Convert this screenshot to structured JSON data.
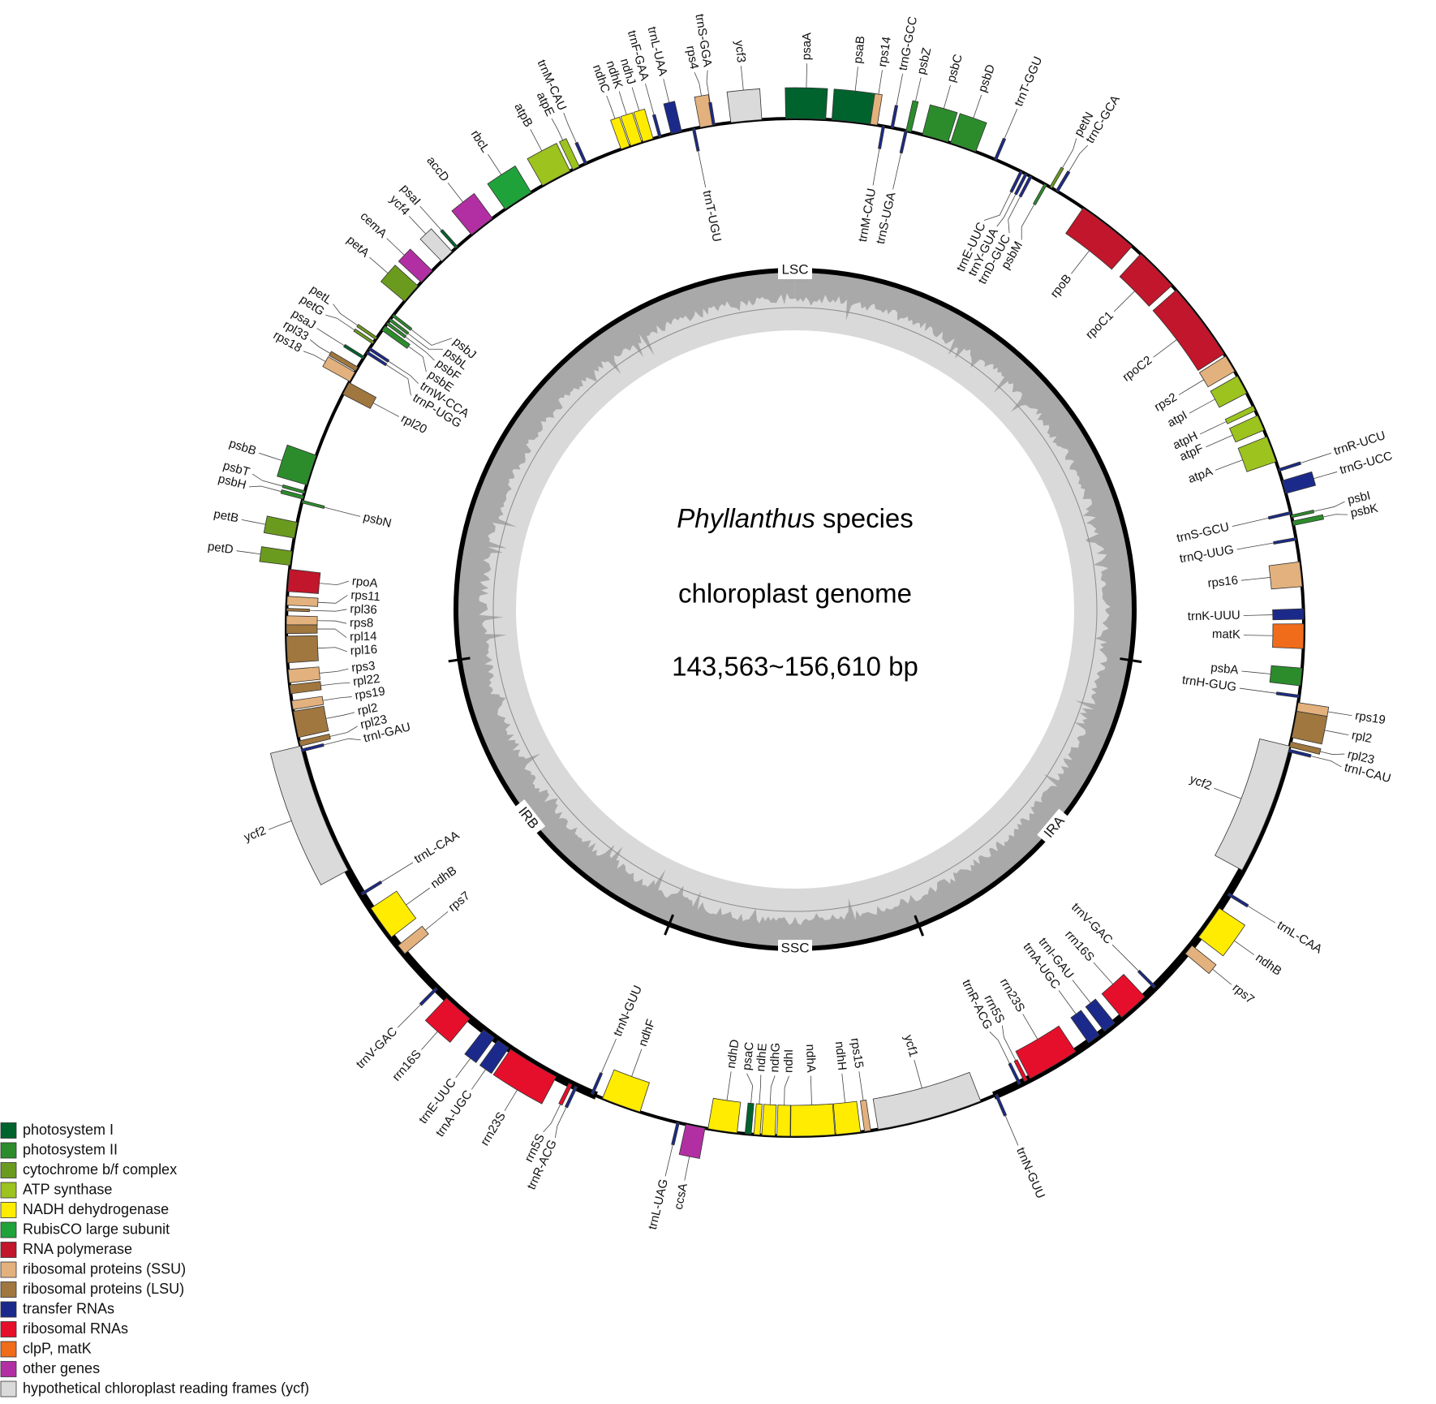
{
  "center_text": {
    "organism": "Phyllanthus",
    "suffix": "species",
    "line2": "chloroplast genome",
    "line3": "143,563~156,610 bp"
  },
  "regions": [
    "LSC",
    "IRA",
    "SSC",
    "IRB"
  ],
  "legend": [
    {
      "label": "photosystem I",
      "color": "#00632e"
    },
    {
      "label": "photosystem II",
      "color": "#2c8c2c"
    },
    {
      "label": "cytochrome b/f complex",
      "color": "#6b9b1e"
    },
    {
      "label": "ATP synthase",
      "color": "#9cc31e"
    },
    {
      "label": "NADH dehydrogenase",
      "color": "#ffec00"
    },
    {
      "label": "RubisCO large subunit",
      "color": "#1fa23a"
    },
    {
      "label": "RNA polymerase",
      "color": "#c1162b"
    },
    {
      "label": "ribosomal proteins (SSU)",
      "color": "#e3b17d"
    },
    {
      "label": "ribosomal proteins (LSU)",
      "color": "#a0773f"
    },
    {
      "label": "transfer RNAs",
      "color": "#1b2a8a"
    },
    {
      "label": "ribosomal RNAs",
      "color": "#e60f2b"
    },
    {
      "label": "clpP, matK",
      "color": "#f06c1b"
    },
    {
      "label": "other genes",
      "color": "#b22fa3"
    },
    {
      "label": "hypothetical chloroplast reading frames (ycf)",
      "color": "#dadada"
    }
  ],
  "genes": [
    {
      "label": "psaA",
      "color": "#00632e"
    },
    {
      "label": "psaB",
      "color": "#00632e"
    },
    {
      "label": "rps14",
      "color": "#e3b17d"
    },
    {
      "label": "trnM-CAU",
      "color": "#1b2a8a"
    },
    {
      "label": "trnG-GCC",
      "color": "#1b2a8a"
    },
    {
      "label": "trnS-UGA",
      "color": "#1b2a8a"
    },
    {
      "label": "psbZ",
      "color": "#2c8c2c"
    },
    {
      "label": "psbC",
      "color": "#2c8c2c"
    },
    {
      "label": "psbD",
      "color": "#2c8c2c"
    },
    {
      "label": "trnT-GGU",
      "color": "#1b2a8a"
    },
    {
      "label": "trnE-UUC",
      "color": "#1b2a8a"
    },
    {
      "label": "trnY-GUA",
      "color": "#1b2a8a"
    },
    {
      "label": "trnD-GUC",
      "color": "#1b2a8a"
    },
    {
      "label": "psbM",
      "color": "#2c8c2c"
    },
    {
      "label": "petN",
      "color": "#6b9b1e"
    },
    {
      "label": "trnC-GCA",
      "color": "#1b2a8a"
    },
    {
      "label": "rpoB",
      "color": "#c1162b"
    },
    {
      "label": "rpoC1",
      "color": "#c1162b"
    },
    {
      "label": "rpoC2",
      "color": "#c1162b"
    },
    {
      "label": "rps2",
      "color": "#e3b17d"
    },
    {
      "label": "atpI",
      "color": "#9cc31e"
    },
    {
      "label": "atpH",
      "color": "#9cc31e"
    },
    {
      "label": "atpF",
      "color": "#9cc31e"
    },
    {
      "label": "atpA",
      "color": "#9cc31e"
    },
    {
      "label": "trnR-UCU",
      "color": "#1b2a8a"
    },
    {
      "label": "trnG-UCC",
      "color": "#1b2a8a"
    },
    {
      "label": "trnS-GCU",
      "color": "#1b2a8a"
    },
    {
      "label": "psbI",
      "color": "#2c8c2c"
    },
    {
      "label": "psbK",
      "color": "#2c8c2c"
    },
    {
      "label": "trnQ-UUG",
      "color": "#1b2a8a"
    },
    {
      "label": "rps16",
      "color": "#e3b17d"
    },
    {
      "label": "trnK-UUU",
      "color": "#1b2a8a"
    },
    {
      "label": "matK",
      "color": "#f06c1b"
    },
    {
      "label": "psbA",
      "color": "#2c8c2c"
    },
    {
      "label": "trnH-GUG",
      "color": "#1b2a8a"
    },
    {
      "label": "rps19",
      "color": "#e3b17d"
    },
    {
      "label": "rpl2",
      "color": "#a0773f"
    },
    {
      "label": "rpl23",
      "color": "#a0773f"
    },
    {
      "label": "trnI-CAU",
      "color": "#1b2a8a"
    },
    {
      "label": "ycf2",
      "color": "#dadada"
    },
    {
      "label": "trnL-CAA",
      "color": "#1b2a8a"
    },
    {
      "label": "ndhB",
      "color": "#ffec00"
    },
    {
      "label": "rps7",
      "color": "#e3b17d"
    },
    {
      "label": "trnV-GAC",
      "color": "#1b2a8a"
    },
    {
      "label": "rrn16S",
      "color": "#e60f2b"
    },
    {
      "label": "trnI-GAU",
      "color": "#1b2a8a"
    },
    {
      "label": "trnA-UGC",
      "color": "#1b2a8a"
    },
    {
      "label": "rrn23S",
      "color": "#e60f2b"
    },
    {
      "label": "rrn5S",
      "color": "#e60f2b"
    },
    {
      "label": "trnR-ACG",
      "color": "#1b2a8a"
    },
    {
      "label": "trnN-GUU",
      "color": "#1b2a8a"
    },
    {
      "label": "ycf1",
      "color": "#dadada"
    },
    {
      "label": "rps15",
      "color": "#e3b17d"
    },
    {
      "label": "ndhH",
      "color": "#ffec00"
    },
    {
      "label": "ndhA",
      "color": "#ffec00"
    },
    {
      "label": "ndhI",
      "color": "#ffec00"
    },
    {
      "label": "ndhG",
      "color": "#ffec00"
    },
    {
      "label": "ndhE",
      "color": "#ffec00"
    },
    {
      "label": "psaC",
      "color": "#00632e"
    },
    {
      "label": "ndhD",
      "color": "#ffec00"
    },
    {
      "label": "ccsA",
      "color": "#b22fa3"
    },
    {
      "label": "trnL-UAG",
      "color": "#1b2a8a"
    },
    {
      "label": "ndhF",
      "color": "#ffec00"
    },
    {
      "label": "trnN-GUU",
      "color": "#1b2a8a"
    },
    {
      "label": "trnR-ACG",
      "color": "#1b2a8a"
    },
    {
      "label": "rrn5S",
      "color": "#e60f2b"
    },
    {
      "label": "rrn23S",
      "color": "#e60f2b"
    },
    {
      "label": "trnA-UGC",
      "color": "#1b2a8a"
    },
    {
      "label": "trnE-UUC",
      "color": "#1b2a8a"
    },
    {
      "label": "rrn16S",
      "color": "#e60f2b"
    },
    {
      "label": "trnV-GAC",
      "color": "#1b2a8a"
    },
    {
      "label": "rps7",
      "color": "#e3b17d"
    },
    {
      "label": "ndhB",
      "color": "#ffec00"
    },
    {
      "label": "trnL-CAA",
      "color": "#1b2a8a"
    },
    {
      "label": "ycf2",
      "color": "#dadada"
    },
    {
      "label": "trnI-GAU",
      "color": "#1b2a8a"
    },
    {
      "label": "rpl23",
      "color": "#a0773f"
    },
    {
      "label": "rpl2",
      "color": "#a0773f"
    },
    {
      "label": "rps19",
      "color": "#e3b17d"
    },
    {
      "label": "rpl22",
      "color": "#a0773f"
    },
    {
      "label": "rps3",
      "color": "#e3b17d"
    },
    {
      "label": "rpl16",
      "color": "#a0773f"
    },
    {
      "label": "rpl14",
      "color": "#a0773f"
    },
    {
      "label": "rps8",
      "color": "#e3b17d"
    },
    {
      "label": "rpl36",
      "color": "#a0773f"
    },
    {
      "label": "rps11",
      "color": "#e3b17d"
    },
    {
      "label": "rpoA",
      "color": "#c1162b"
    },
    {
      "label": "petD",
      "color": "#6b9b1e"
    },
    {
      "label": "petB",
      "color": "#6b9b1e"
    },
    {
      "label": "psbN",
      "color": "#2c8c2c"
    },
    {
      "label": "psbH",
      "color": "#2c8c2c"
    },
    {
      "label": "psbT",
      "color": "#2c8c2c"
    },
    {
      "label": "psbB",
      "color": "#2c8c2c"
    },
    {
      "label": "rpl20",
      "color": "#a0773f"
    },
    {
      "label": "rps18",
      "color": "#e3b17d"
    },
    {
      "label": "rpl33",
      "color": "#a0773f"
    },
    {
      "label": "psaJ",
      "color": "#00632e"
    },
    {
      "label": "trnP-UGG",
      "color": "#1b2a8a"
    },
    {
      "label": "trnW-CCA",
      "color": "#1b2a8a"
    },
    {
      "label": "petG",
      "color": "#6b9b1e"
    },
    {
      "label": "petL",
      "color": "#6b9b1e"
    },
    {
      "label": "psbE",
      "color": "#2c8c2c"
    },
    {
      "label": "psbF",
      "color": "#2c8c2c"
    },
    {
      "label": "psbL",
      "color": "#2c8c2c"
    },
    {
      "label": "psbJ",
      "color": "#2c8c2c"
    },
    {
      "label": "petA",
      "color": "#6b9b1e"
    },
    {
      "label": "cemA",
      "color": "#b22fa3"
    },
    {
      "label": "ycf4",
      "color": "#dadada"
    },
    {
      "label": "psaI",
      "color": "#00632e"
    },
    {
      "label": "accD",
      "color": "#b22fa3"
    },
    {
      "label": "rbcL",
      "color": "#1fa23a"
    },
    {
      "label": "atpB",
      "color": "#9cc31e"
    },
    {
      "label": "atpE",
      "color": "#9cc31e"
    },
    {
      "label": "trnM-CAU",
      "color": "#1b2a8a"
    },
    {
      "label": "ndhC",
      "color": "#ffec00"
    },
    {
      "label": "ndhK",
      "color": "#ffec00"
    },
    {
      "label": "ndhJ",
      "color": "#ffec00"
    },
    {
      "label": "trnF-GAA",
      "color": "#1b2a8a"
    },
    {
      "label": "trnL-UAA",
      "color": "#1b2a8a"
    },
    {
      "label": "trnT-UGU",
      "color": "#1b2a8a"
    },
    {
      "label": "rps4",
      "color": "#e3b17d"
    },
    {
      "label": "trnS-GGA",
      "color": "#1b2a8a"
    },
    {
      "label": "ycf3",
      "color": "#dadada"
    }
  ]
}
